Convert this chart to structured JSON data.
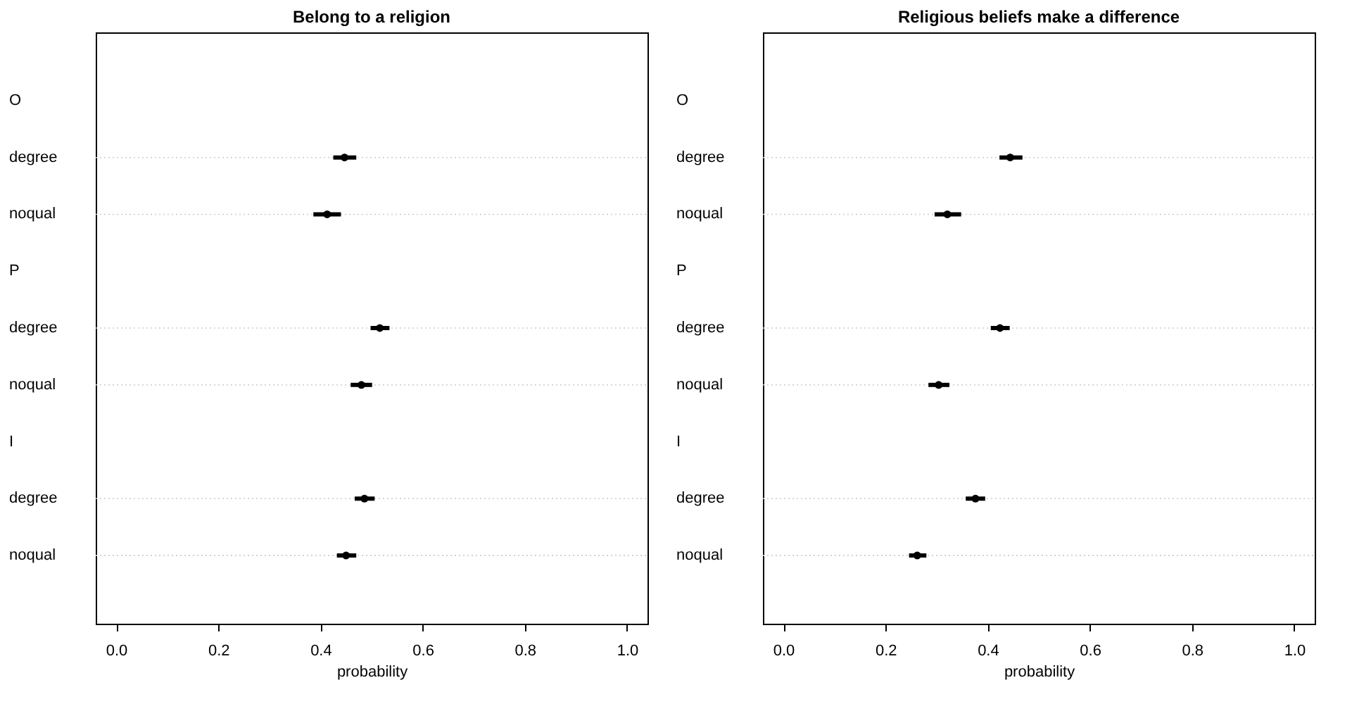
{
  "chart_data": [
    {
      "type": "scatter",
      "title": "Belong to a religion",
      "xlabel": "probability",
      "orientation": "horizontal",
      "categories": [
        "O",
        "degree",
        "noqual",
        "P",
        "degree",
        "noqual",
        "I",
        "degree",
        "noqual"
      ],
      "values": [
        null,
        0.447,
        0.413,
        null,
        0.516,
        0.48,
        null,
        0.486,
        0.45
      ],
      "errors": [
        null,
        [
          0.425,
          0.47
        ],
        [
          0.386,
          0.44
        ],
        null,
        [
          0.498,
          0.535
        ],
        [
          0.459,
          0.501
        ],
        null,
        [
          0.467,
          0.506
        ],
        [
          0.432,
          0.47
        ]
      ],
      "color": "#000000",
      "marker": "circle",
      "grid": "y",
      "xlim": [
        -0.04,
        1.04
      ],
      "xticks": [
        {
          "value": 0,
          "label": "0.0"
        },
        {
          "value": 0.2,
          "label": "0.2"
        },
        {
          "value": 0.4,
          "label": "0.4"
        },
        {
          "value": 0.6,
          "label": "0.6"
        },
        {
          "value": 0.8,
          "label": "0.8"
        },
        {
          "value": 1,
          "label": "1.0"
        }
      ]
    },
    {
      "type": "scatter",
      "title": "Religious beliefs make a difference",
      "xlabel": "probability",
      "orientation": "horizontal",
      "categories": [
        "O",
        "degree",
        "noqual",
        "P",
        "degree",
        "noqual",
        "I",
        "degree",
        "noqual"
      ],
      "values": [
        null,
        0.444,
        0.321,
        null,
        0.424,
        0.304,
        null,
        0.376,
        0.262
      ],
      "errors": [
        null,
        [
          0.423,
          0.468
        ],
        [
          0.296,
          0.348
        ],
        null,
        [
          0.406,
          0.443
        ],
        [
          0.284,
          0.325
        ],
        null,
        [
          0.357,
          0.395
        ],
        [
          0.246,
          0.28
        ]
      ],
      "color": "#000000",
      "marker": "circle",
      "grid": "y",
      "xlim": [
        -0.04,
        1.04
      ],
      "xticks": [
        {
          "value": 0,
          "label": "0.0"
        },
        {
          "value": 0.2,
          "label": "0.2"
        },
        {
          "value": 0.4,
          "label": "0.4"
        },
        {
          "value": 0.6,
          "label": "0.6"
        },
        {
          "value": 0.8,
          "label": "0.8"
        },
        {
          "value": 1,
          "label": "1.0"
        }
      ]
    }
  ]
}
